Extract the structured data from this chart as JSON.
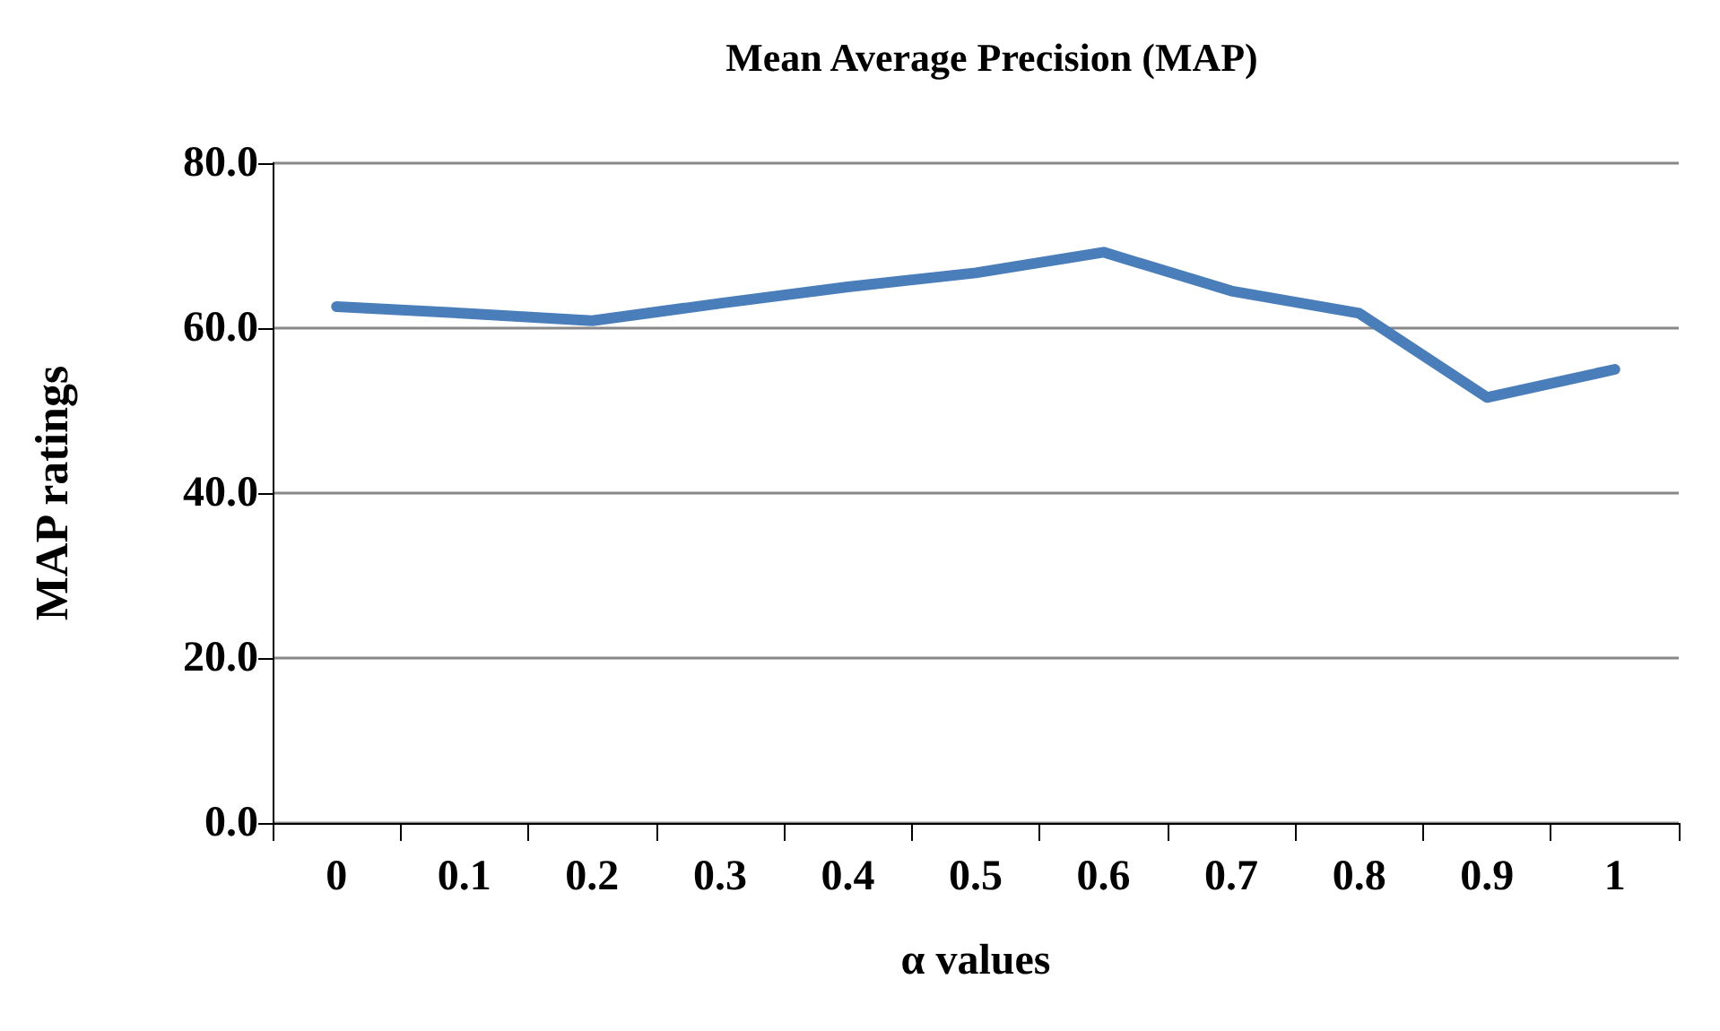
{
  "chart_data": {
    "type": "line",
    "title": "Mean Average Precision (MAP)",
    "xlabel": "α values",
    "ylabel": "MAP ratings",
    "categories": [
      "0",
      "0.1",
      "0.2",
      "0.3",
      "0.4",
      "0.5",
      "0.6",
      "0.7",
      "0.8",
      "0.9",
      "1"
    ],
    "series": [
      {
        "color": "#4a7ebb",
        "values": [
          62.6,
          61.8,
          60.9,
          63.0,
          65.0,
          66.7,
          69.2,
          64.5,
          61.8,
          51.6,
          55.0
        ]
      }
    ],
    "ylim": [
      0,
      80
    ],
    "yticks": [
      {
        "value": 0,
        "label": "0.0"
      },
      {
        "value": 20,
        "label": "20.0"
      },
      {
        "value": 40,
        "label": "40.0"
      },
      {
        "value": 60,
        "label": "60.0"
      },
      {
        "value": 80,
        "label": "80.0"
      }
    ],
    "grid": "y",
    "marker": "none",
    "line_style": "solid"
  }
}
